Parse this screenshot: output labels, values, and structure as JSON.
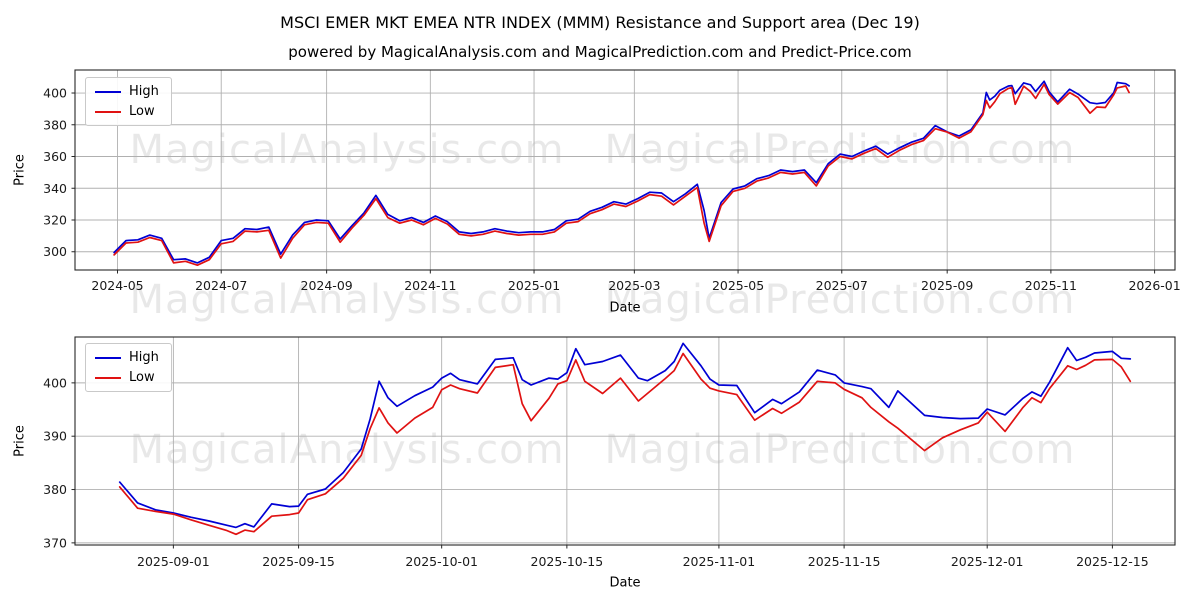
{
  "header": {
    "title": "MSCI EMER MKT EMEA NTR INDEX (MMM) Resistance and Support area (Dec 19)",
    "subtitle": "powered by MagicalAnalysis.com and MagicalPrediction.com and Predict-Price.com"
  },
  "watermarks": {
    "texts": [
      "MagicalAnalysis.com",
      "MagicalPrediction.com"
    ],
    "color": "rgba(0,0,0,0.09)"
  },
  "palette": {
    "high_line": "#0000d4",
    "low_line": "#e01212",
    "grid": "#b0b0b0",
    "spine": "#262626",
    "tick_text": "#1a1a1a"
  },
  "chart_data": [
    {
      "type": "line",
      "name": "overview",
      "xlabel": "Date",
      "ylabel": "Price",
      "grid": true,
      "legend_position": "upper-left",
      "xlim": [
        "2024-04-06",
        "2026-01-13"
      ],
      "ylim": [
        288.5,
        414.5
      ],
      "yticks": [
        300,
        320,
        340,
        360,
        380,
        400
      ],
      "xticks": [
        {
          "date": "2024-05-01",
          "label": "2024-05"
        },
        {
          "date": "2024-07-01",
          "label": "2024-07"
        },
        {
          "date": "2024-09-01",
          "label": "2024-09"
        },
        {
          "date": "2024-11-01",
          "label": "2024-11"
        },
        {
          "date": "2025-01-01",
          "label": "2025-01"
        },
        {
          "date": "2025-03-01",
          "label": "2025-03"
        },
        {
          "date": "2025-05-01",
          "label": "2025-05"
        },
        {
          "date": "2025-07-01",
          "label": "2025-07"
        },
        {
          "date": "2025-09-01",
          "label": "2025-09"
        },
        {
          "date": "2025-11-01",
          "label": "2025-11"
        },
        {
          "date": "2026-01-01",
          "label": "2026-01"
        }
      ],
      "x": [
        "2024-04-29",
        "2024-05-06",
        "2024-05-13",
        "2024-05-20",
        "2024-05-27",
        "2024-06-03",
        "2024-06-10",
        "2024-06-17",
        "2024-06-24",
        "2024-07-01",
        "2024-07-08",
        "2024-07-15",
        "2024-07-22",
        "2024-07-29",
        "2024-08-05",
        "2024-08-12",
        "2024-08-19",
        "2024-08-26",
        "2024-09-02",
        "2024-09-09",
        "2024-09-16",
        "2024-09-23",
        "2024-09-30",
        "2024-10-07",
        "2024-10-14",
        "2024-10-21",
        "2024-10-28",
        "2024-11-04",
        "2024-11-11",
        "2024-11-18",
        "2024-11-25",
        "2024-12-02",
        "2024-12-09",
        "2024-12-16",
        "2024-12-23",
        "2024-12-30",
        "2025-01-06",
        "2025-01-13",
        "2025-01-20",
        "2025-01-27",
        "2025-02-03",
        "2025-02-10",
        "2025-02-17",
        "2025-02-24",
        "2025-03-03",
        "2025-03-10",
        "2025-03-17",
        "2025-03-24",
        "2025-03-31",
        "2025-04-07",
        "2025-04-11",
        "2025-04-14",
        "2025-04-21",
        "2025-04-28",
        "2025-05-05",
        "2025-05-12",
        "2025-05-19",
        "2025-05-26",
        "2025-06-02",
        "2025-06-09",
        "2025-06-16",
        "2025-06-23",
        "2025-06-30",
        "2025-07-07",
        "2025-07-14",
        "2025-07-21",
        "2025-07-28",
        "2025-08-04",
        "2025-08-11",
        "2025-08-18",
        "2025-08-25",
        "2025-09-01",
        "2025-09-08",
        "2025-09-15",
        "2025-09-22",
        "2025-09-24",
        "2025-09-26",
        "2025-09-29",
        "2025-10-02",
        "2025-10-07",
        "2025-10-09",
        "2025-10-11",
        "2025-10-16",
        "2025-10-20",
        "2025-10-23",
        "2025-10-28",
        "2025-10-31",
        "2025-11-05",
        "2025-11-12",
        "2025-11-17",
        "2025-11-24",
        "2025-11-28",
        "2025-12-03",
        "2025-12-08",
        "2025-12-10",
        "2025-12-15",
        "2025-12-17"
      ],
      "series": [
        {
          "name": "High",
          "color": "#0000d4",
          "values": [
            299.5,
            307,
            307.5,
            310.5,
            308.5,
            295,
            295.5,
            293,
            296.5,
            307,
            308.5,
            314.5,
            314,
            315.5,
            298.5,
            310.5,
            318.5,
            320,
            319.5,
            308,
            316.5,
            324.5,
            335.5,
            323.5,
            319.5,
            321.5,
            318.5,
            322.5,
            319,
            312.5,
            311.5,
            312.5,
            314.5,
            313,
            312,
            312.5,
            312.5,
            314,
            319.5,
            320.5,
            325.5,
            328,
            331.5,
            330,
            333.5,
            337.5,
            337,
            331.5,
            336.5,
            342.5,
            326,
            308.5,
            331,
            339.5,
            341.5,
            346,
            348,
            351.5,
            350.5,
            351.5,
            343.5,
            355.5,
            361.5,
            360,
            363.5,
            366.5,
            361.5,
            365.5,
            369,
            371.5,
            379.5,
            375.5,
            372.9,
            376.8,
            387.5,
            400.3,
            395.6,
            398,
            401.8,
            404.4,
            404.7,
            399.6,
            406.4,
            405.2,
            400.9,
            407.4,
            400.7,
            394.4,
            402.4,
            399.3,
            393.9,
            393.3,
            394,
            400.2,
            406.6,
            405.9,
            404.5
          ]
        },
        {
          "name": "Low",
          "color": "#e01212",
          "values": [
            298,
            305.5,
            306,
            309,
            307,
            293,
            294,
            291.5,
            295,
            305,
            306.5,
            313,
            312.5,
            313.5,
            296,
            308.5,
            317,
            318.5,
            318,
            306,
            315,
            323,
            333.5,
            321.5,
            318,
            320,
            317,
            321,
            317.5,
            311,
            310,
            311,
            313,
            311.5,
            310.5,
            311,
            311,
            312.5,
            318,
            319,
            324,
            326.5,
            330,
            328.5,
            332,
            336,
            335,
            329.5,
            335,
            340.5,
            318,
            306.5,
            329,
            338,
            340,
            344.5,
            346.5,
            350,
            349,
            350,
            341.5,
            354,
            360,
            358.5,
            362,
            365,
            359.5,
            364,
            367.5,
            370,
            377.5,
            375.4,
            371.6,
            375.6,
            386.4,
            395.3,
            390.6,
            394.5,
            399.6,
            402.9,
            403.4,
            392.9,
            404.3,
            400.9,
            396.6,
            405.5,
            399,
            393,
            400.3,
            397.2,
            387.3,
            391.2,
            390.9,
            399,
            403.2,
            404.4,
            400.3
          ]
        }
      ]
    },
    {
      "type": "line",
      "name": "zoom-recent",
      "xlabel": "Date",
      "ylabel": "Price",
      "grid": true,
      "legend_position": "upper-left",
      "xlim": [
        "2025-08-21",
        "2025-12-22"
      ],
      "ylim": [
        369.6,
        408.6
      ],
      "yticks": [
        370,
        380,
        390,
        400
      ],
      "xticks": [
        {
          "date": "2025-09-01",
          "label": "2025-09-01"
        },
        {
          "date": "2025-09-15",
          "label": "2025-09-15"
        },
        {
          "date": "2025-10-01",
          "label": "2025-10-01"
        },
        {
          "date": "2025-10-15",
          "label": "2025-10-15"
        },
        {
          "date": "2025-11-01",
          "label": "2025-11-01"
        },
        {
          "date": "2025-11-15",
          "label": "2025-11-15"
        },
        {
          "date": "2025-12-01",
          "label": "2025-12-01"
        },
        {
          "date": "2025-12-15",
          "label": "2025-12-15"
        }
      ],
      "x": [
        "2025-08-26",
        "2025-08-28",
        "2025-08-30",
        "2025-09-01",
        "2025-09-03",
        "2025-09-05",
        "2025-09-07",
        "2025-09-08",
        "2025-09-09",
        "2025-09-10",
        "2025-09-12",
        "2025-09-14",
        "2025-09-15",
        "2025-09-16",
        "2025-09-18",
        "2025-09-20",
        "2025-09-22",
        "2025-09-23",
        "2025-09-24",
        "2025-09-25",
        "2025-09-26",
        "2025-09-28",
        "2025-09-30",
        "2025-10-01",
        "2025-10-02",
        "2025-10-03",
        "2025-10-05",
        "2025-10-07",
        "2025-10-09",
        "2025-10-10",
        "2025-10-11",
        "2025-10-13",
        "2025-10-14",
        "2025-10-15",
        "2025-10-16",
        "2025-10-17",
        "2025-10-19",
        "2025-10-21",
        "2025-10-23",
        "2025-10-24",
        "2025-10-26",
        "2025-10-27",
        "2025-10-28",
        "2025-10-30",
        "2025-10-31",
        "2025-11-01",
        "2025-11-03",
        "2025-11-05",
        "2025-11-07",
        "2025-11-08",
        "2025-11-10",
        "2025-11-12",
        "2025-11-14",
        "2025-11-15",
        "2025-11-17",
        "2025-11-18",
        "2025-11-20",
        "2025-11-21",
        "2025-11-24",
        "2025-11-26",
        "2025-11-28",
        "2025-11-30",
        "2025-12-01",
        "2025-12-03",
        "2025-12-05",
        "2025-12-06",
        "2025-12-07",
        "2025-12-08",
        "2025-12-10",
        "2025-12-11",
        "2025-12-12",
        "2025-12-13",
        "2025-12-15",
        "2025-12-16",
        "2025-12-17"
      ],
      "series": [
        {
          "name": "High",
          "color": "#0000d4",
          "values": [
            381.4,
            377.5,
            376.2,
            375.6,
            374.8,
            374.1,
            373.3,
            372.9,
            373.6,
            373.0,
            377.3,
            376.8,
            376.9,
            379.1,
            380.1,
            383.2,
            387.6,
            393.2,
            400.3,
            397.2,
            395.6,
            397.6,
            399.2,
            400.9,
            401.8,
            400.6,
            399.8,
            404.4,
            404.7,
            400.6,
            399.6,
            400.9,
            400.7,
            401.9,
            406.4,
            403.4,
            404.0,
            405.2,
            400.9,
            400.4,
            402.3,
            404.0,
            407.4,
            403.2,
            400.7,
            399.6,
            399.5,
            394.4,
            396.9,
            396.1,
            398.3,
            402.4,
            401.5,
            400.0,
            399.3,
            398.9,
            395.4,
            398.5,
            393.9,
            393.5,
            393.3,
            393.4,
            395.1,
            394.0,
            397.1,
            398.3,
            397.5,
            400.2,
            406.6,
            404.2,
            404.8,
            405.6,
            405.9,
            404.6,
            404.5
          ]
        },
        {
          "name": "Low",
          "color": "#e01212",
          "values": [
            380.5,
            376.5,
            375.9,
            375.4,
            374.3,
            373.3,
            372.3,
            371.6,
            372.4,
            372.1,
            375.0,
            375.3,
            375.6,
            378.1,
            379.2,
            382.1,
            386.4,
            391.4,
            395.3,
            392.5,
            390.6,
            393.4,
            395.4,
            398.7,
            399.6,
            398.9,
            398.1,
            402.9,
            403.4,
            396.1,
            392.9,
            397.1,
            399.8,
            400.4,
            404.3,
            400.3,
            398.0,
            400.9,
            396.6,
            398.0,
            400.8,
            402.3,
            405.5,
            400.7,
            399.0,
            398.5,
            397.8,
            393.0,
            395.2,
            394.3,
            396.4,
            400.3,
            400.0,
            398.8,
            397.2,
            395.4,
            392.7,
            391.5,
            387.3,
            389.7,
            391.2,
            392.5,
            394.5,
            390.9,
            395.4,
            397.2,
            396.3,
            399.0,
            403.2,
            402.5,
            403.3,
            404.3,
            404.4,
            403.0,
            400.3
          ]
        }
      ]
    }
  ]
}
